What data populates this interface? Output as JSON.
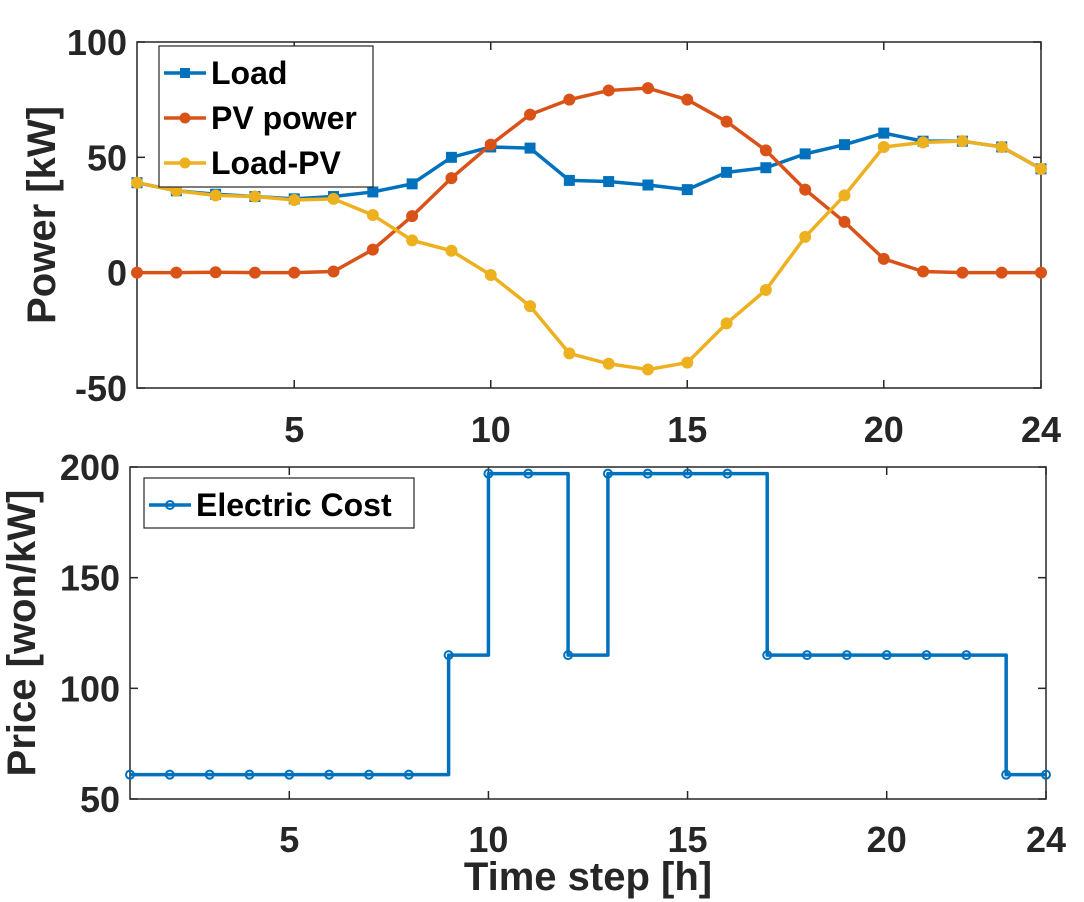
{
  "chart_data": [
    {
      "type": "line",
      "ylabel": "Power [kW]",
      "xlabel": "",
      "xlim": [
        1,
        24
      ],
      "ylim": [
        -50,
        100
      ],
      "xticks": [
        5,
        10,
        15,
        20,
        24
      ],
      "yticks": [
        -50,
        0,
        50,
        100
      ],
      "legend": "top-left",
      "x": [
        1,
        2,
        3,
        4,
        5,
        6,
        7,
        8,
        9,
        10,
        11,
        12,
        13,
        14,
        15,
        16,
        17,
        18,
        19,
        20,
        21,
        22,
        23,
        24
      ],
      "series": [
        {
          "name": "Load",
          "color": "#0072BD",
          "marker": "square",
          "values": [
            39,
            35.5,
            34,
            33,
            32,
            33,
            35,
            38.5,
            50,
            54.5,
            54,
            40,
            39.5,
            38,
            36,
            43.5,
            45.5,
            51.5,
            55.5,
            60.5,
            57,
            57,
            54.5,
            45
          ]
        },
        {
          "name": "PV power",
          "color": "#D95319",
          "marker": "circle",
          "values": [
            0,
            0,
            0.2,
            0,
            0,
            0.5,
            10,
            24.5,
            41,
            55.5,
            68.5,
            75,
            79,
            80,
            75,
            65.5,
            53,
            36,
            22,
            6,
            0.5,
            0,
            0,
            0
          ]
        },
        {
          "name": "Load-PV",
          "color": "#EDB120",
          "marker": "circle",
          "values": [
            39,
            35.5,
            33.5,
            33,
            31.5,
            32,
            25,
            14,
            9.5,
            -1,
            -14.5,
            -35,
            -39.5,
            -42,
            -39,
            -22,
            -7.5,
            15.5,
            33.5,
            54.5,
            56.5,
            57,
            54.5,
            45
          ]
        }
      ]
    },
    {
      "type": "line",
      "step": true,
      "ylabel": "Price [won/kW]",
      "xlabel": "Time step [h]",
      "xlim": [
        1,
        24
      ],
      "ylim": [
        50,
        200
      ],
      "xticks": [
        5,
        10,
        15,
        20,
        24
      ],
      "yticks": [
        50,
        100,
        150,
        200
      ],
      "legend": "top-left",
      "x": [
        1,
        2,
        3,
        4,
        5,
        6,
        7,
        8,
        9,
        10,
        11,
        12,
        13,
        14,
        15,
        16,
        17,
        18,
        19,
        20,
        21,
        22,
        23,
        24
      ],
      "series": [
        {
          "name": "Electric Cost",
          "color": "#0072BD",
          "marker": "open-circle",
          "values": [
            61,
            61,
            61,
            61,
            61,
            61,
            61,
            61,
            115,
            197,
            197,
            115,
            197,
            197,
            197,
            197,
            115,
            115,
            115,
            115,
            115,
            115,
            61,
            61
          ]
        }
      ]
    }
  ]
}
